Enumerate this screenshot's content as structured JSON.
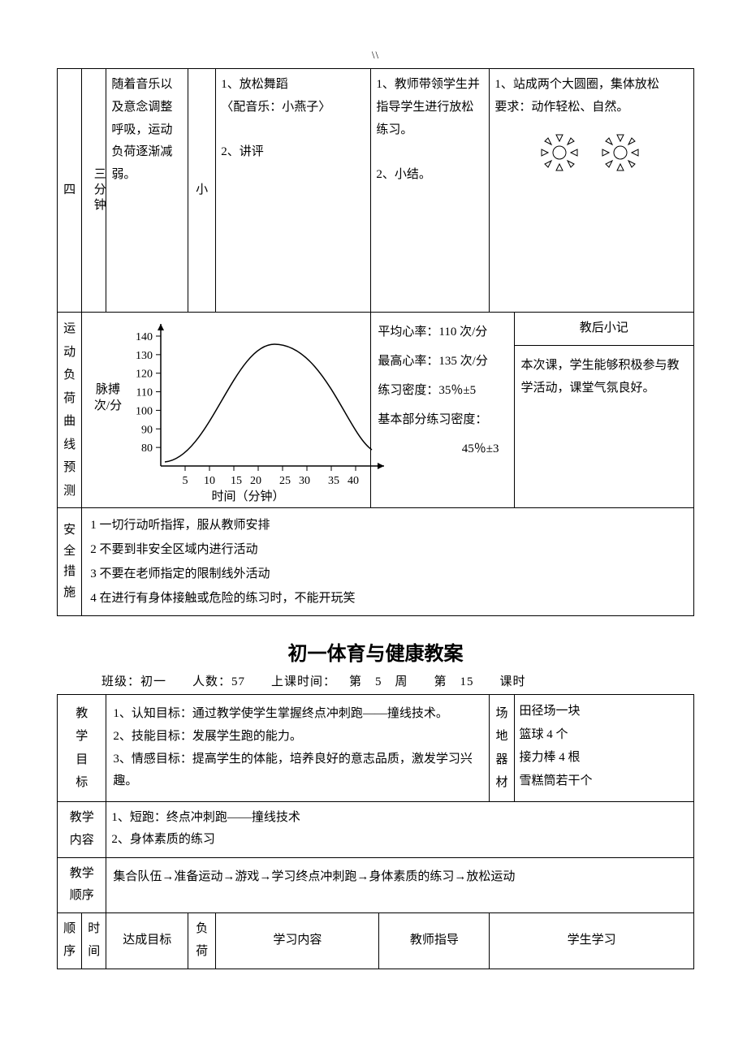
{
  "header_mark": "\\\\",
  "table1": {
    "row1": {
      "c1": "四",
      "c2": "三分钟",
      "c3": "随着音乐以及意念调整呼吸，运动负荷逐渐减弱。",
      "c4": "小",
      "c5_lines": [
        "1、放松舞蹈",
        "〈配音乐：小燕子〉",
        "",
        "2、讲评"
      ],
      "c6_lines": [
        "1、教师带领学生并指导学生进行放松练习。",
        "",
        "2、小结。"
      ],
      "c7_lines": [
        "1、站成两个大圆圈，集体放松",
        "要求：动作轻松、自然。"
      ]
    },
    "load_row": {
      "label": "运动负荷曲线预测",
      "axis_y_label_l1": "脉搏",
      "axis_y_label_l2": "次/分",
      "metrics": {
        "avg": "平均心率：110 次/分",
        "max": "最高心率：135 次/分",
        "density": "练习密度：35％±5",
        "main_density_l1": "基本部分练习密度：",
        "main_density_l2": "45％±3"
      },
      "notes_title": "教后小记",
      "notes_body": "本次课，学生能够积极参与教学活动，课堂气氛良好。",
      "chart": {
        "y_ticks": [
          "140",
          "130",
          "120",
          "110",
          "100",
          "90",
          "80"
        ],
        "x_ticks": [
          "5",
          "10",
          "15",
          "20",
          "25",
          "30",
          "35",
          "40"
        ],
        "x_label": "时间（分钟）",
        "y_axis_color": "#000",
        "line_color": "#000",
        "bg": "#fff"
      }
    },
    "safety": {
      "label": "安全措施",
      "items": [
        "1 一切行动听指挥，服从教师安排",
        "2 不要到非安全区域内进行活动",
        "3 不要在老师指定的限制线外活动",
        "4 在进行有身体接触或危险的练习时，不能开玩笑"
      ]
    }
  },
  "title2": "初一体育与健康教案",
  "info_line": "班级：初一  人数：57  上课时间： 第 5 周  第 15  课时",
  "table2": {
    "goals": {
      "label": "教学目标",
      "lines": [
        "1、认知目标：通过教学使学生掌握终点冲刺跑——撞线技术。",
        "2、技能目标：发展学生跑的能力。",
        "3、情感目标：提高学生的体能，培养良好的意志品质，激发学习兴趣。"
      ]
    },
    "equip": {
      "label": "场地器材",
      "lines": [
        "田径场一块",
        "篮球 4 个",
        "接力棒 4 根",
        "雪糕筒若干个"
      ]
    },
    "content": {
      "label": "教学内容",
      "lines": [
        "1、短跑：终点冲刺跑——撞线技术",
        "2、身体素质的练习"
      ]
    },
    "order": {
      "label": "教学顺序",
      "text": "集合队伍→准备运动→游戏→学习终点冲刺跑→身体素质的练习→放松运动"
    },
    "hdr": {
      "c1": "顺序",
      "c2": "时间",
      "c3": "达成目标",
      "c4": "负荷",
      "c5": "学习内容",
      "c6": "教师指导",
      "c7": "学生学习"
    }
  }
}
